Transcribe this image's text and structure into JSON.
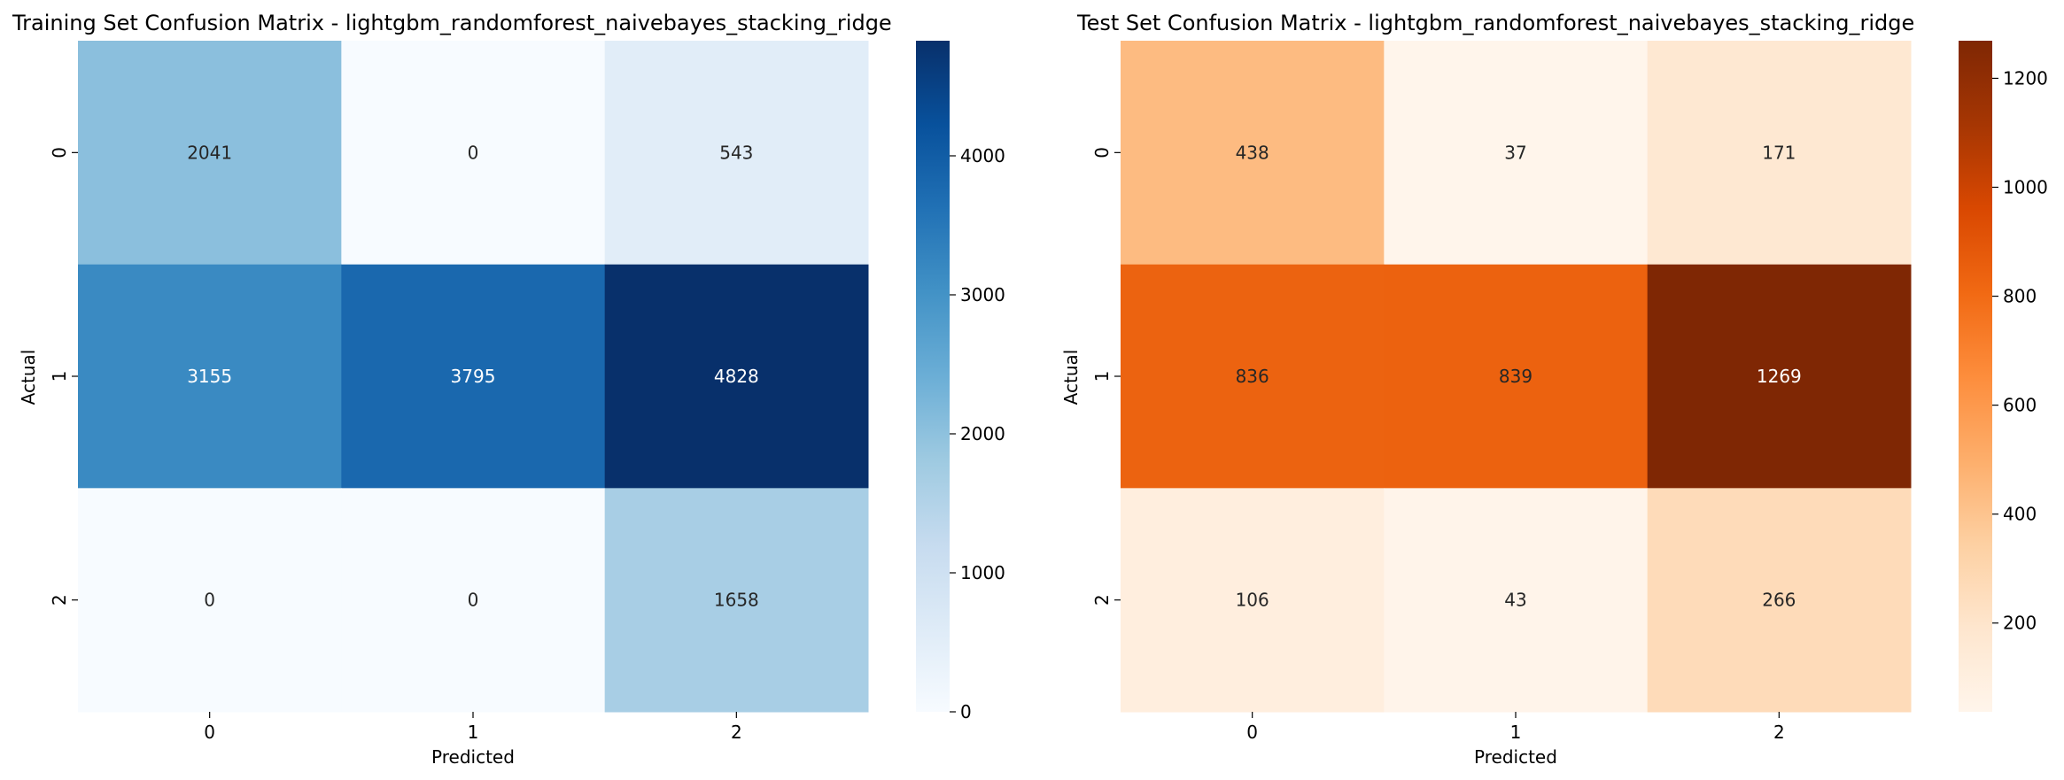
{
  "chart_data": [
    {
      "type": "heatmap",
      "title": "Training Set Confusion Matrix - lightgbm_randomforest_naivebayes_stacking_ridge",
      "xlabel": "Predicted",
      "ylabel": "Actual",
      "x_categories": [
        "0",
        "1",
        "2"
      ],
      "y_categories": [
        "0",
        "1",
        "2"
      ],
      "values": [
        [
          2041,
          0,
          543
        ],
        [
          3155,
          3795,
          4828
        ],
        [
          0,
          0,
          1658
        ]
      ],
      "colormap": "Blues",
      "color_range": [
        0,
        4828
      ],
      "colorbar_ticks": [
        0,
        1000,
        2000,
        3000,
        4000
      ]
    },
    {
      "type": "heatmap",
      "title": "Test Set Confusion Matrix - lightgbm_randomforest_naivebayes_stacking_ridge",
      "xlabel": "Predicted",
      "ylabel": "Actual",
      "x_categories": [
        "0",
        "1",
        "2"
      ],
      "y_categories": [
        "0",
        "1",
        "2"
      ],
      "values": [
        [
          438,
          37,
          171
        ],
        [
          836,
          839,
          1269
        ],
        [
          106,
          43,
          266
        ]
      ],
      "colormap": "Oranges",
      "color_range": [
        37,
        1269
      ],
      "colorbar_ticks": [
        200,
        400,
        600,
        800,
        1000,
        1200
      ]
    }
  ],
  "colormaps": {
    "Blues": [
      "#f7fbff",
      "#deebf7",
      "#c6dbef",
      "#9ecae1",
      "#6baed6",
      "#4292c6",
      "#2171b5",
      "#08519c",
      "#08306b"
    ],
    "Oranges": [
      "#fff5eb",
      "#fee6ce",
      "#fdd0a2",
      "#fdae6b",
      "#fd8d3c",
      "#f16913",
      "#d94801",
      "#a63603",
      "#7f2704"
    ]
  }
}
